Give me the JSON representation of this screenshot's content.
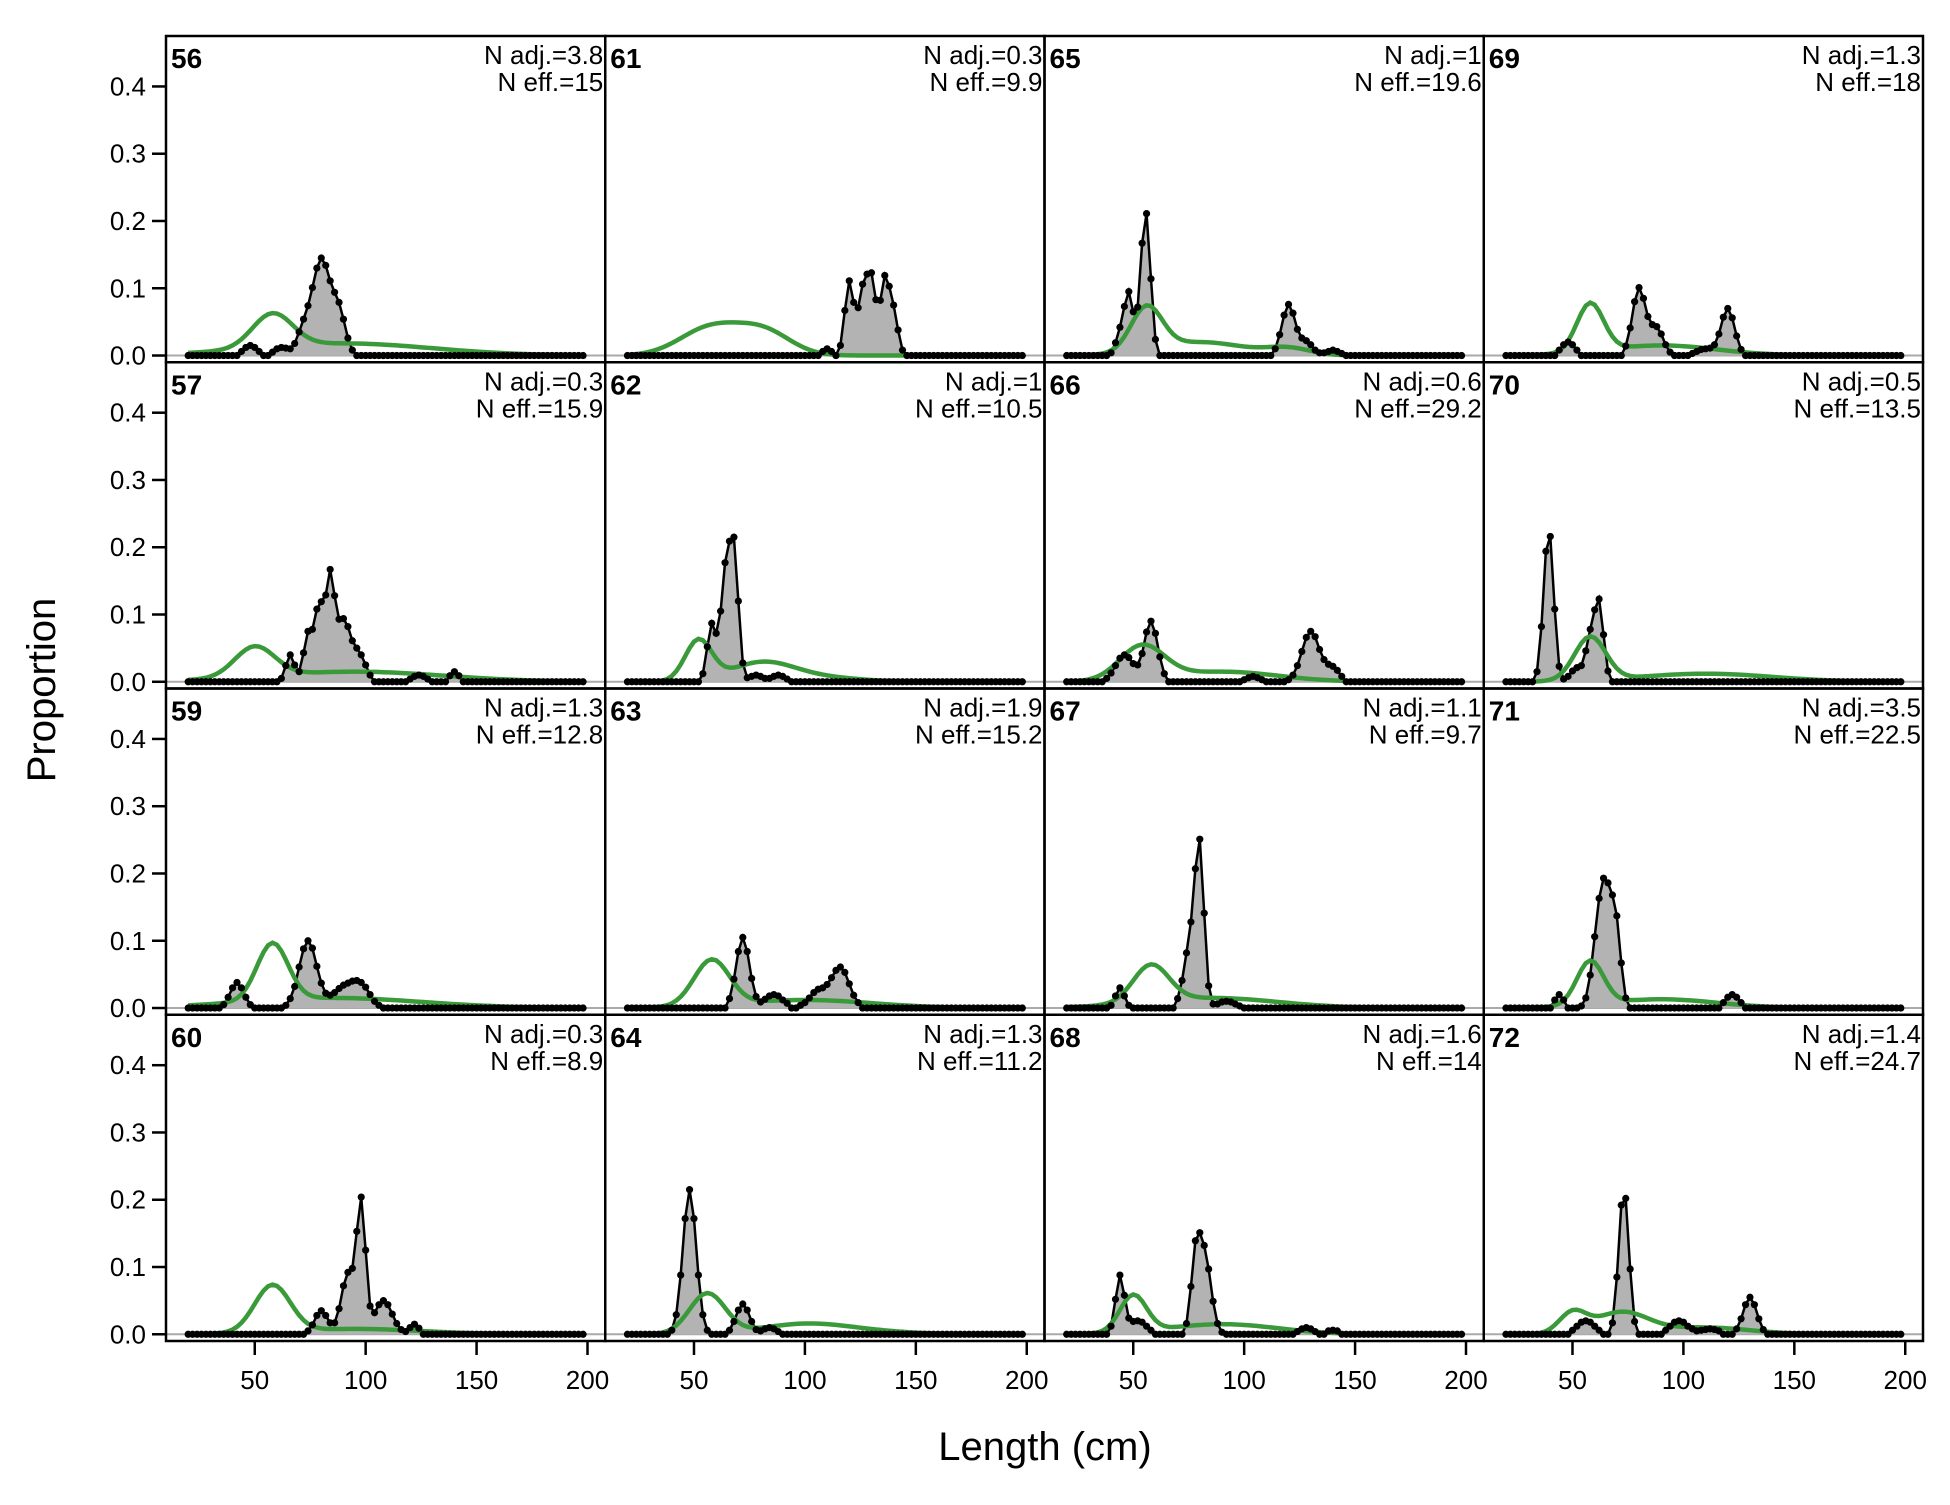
{
  "figure": {
    "xlabel": "Length (cm)",
    "ylabel": "Proportion"
  },
  "chart_data": {
    "type": "line",
    "description_free": true,
    "xlim": [
      10,
      208
    ],
    "ylim": [
      -0.01,
      0.475
    ],
    "x_ticks": [
      50,
      100,
      150,
      200
    ],
    "y_ticks": [
      0.0,
      0.1,
      0.2,
      0.3,
      0.4
    ],
    "y_tick_labels": [
      "0.0",
      "0.1",
      "0.2",
      "0.3",
      "0.4"
    ],
    "x_tick_labels": [
      "50",
      "100",
      "150",
      "200"
    ],
    "layout": "4x4 panels, column-major",
    "colors": {
      "observed_line": "#000000",
      "observed_fill": "#b3b3b3",
      "expected_line": "#3a9a3a",
      "zero_line": "#aaaaaa"
    },
    "bins": {
      "start": 20,
      "end": 198,
      "step": 2
    },
    "panels": [
      {
        "id": "56",
        "n_adj": "N adj.=3.8",
        "n_eff": "N eff.=15",
        "obs_peaks": [
          [
            48,
            0.015,
            3
          ],
          [
            62,
            0.012,
            3
          ],
          [
            72,
            0.035,
            3
          ],
          [
            80,
            0.142,
            4
          ],
          [
            88,
            0.06,
            3
          ]
        ],
        "exp_peaks": [
          [
            58,
            0.05,
            9
          ],
          [
            90,
            0.018,
            40
          ]
        ]
      },
      {
        "id": "57",
        "n_adj": "N adj.=0.3",
        "n_eff": "N eff.=15.9",
        "obs_peaks": [
          [
            66,
            0.04,
            2
          ],
          [
            74,
            0.07,
            2
          ],
          [
            79,
            0.11,
            2
          ],
          [
            84,
            0.15,
            2
          ],
          [
            90,
            0.09,
            3
          ],
          [
            97,
            0.04,
            3
          ],
          [
            124,
            0.01,
            3
          ],
          [
            140,
            0.015,
            2
          ]
        ],
        "exp_peaks": [
          [
            50,
            0.045,
            9
          ],
          [
            95,
            0.015,
            40
          ]
        ]
      },
      {
        "id": "59",
        "n_adj": "N adj.=1.3",
        "n_eff": "N eff.=12.8",
        "obs_peaks": [
          [
            42,
            0.038,
            3
          ],
          [
            74,
            0.1,
            4
          ],
          [
            90,
            0.03,
            5
          ],
          [
            98,
            0.03,
            4
          ]
        ],
        "exp_peaks": [
          [
            58,
            0.085,
            7
          ],
          [
            85,
            0.015,
            40
          ]
        ]
      },
      {
        "id": "60",
        "n_adj": "N adj.=0.3",
        "n_eff": "N eff.=8.9",
        "obs_peaks": [
          [
            80,
            0.035,
            3
          ],
          [
            92,
            0.09,
            3
          ],
          [
            98,
            0.19,
            2
          ],
          [
            108,
            0.05,
            4
          ],
          [
            122,
            0.015,
            2
          ]
        ],
        "exp_peaks": [
          [
            58,
            0.07,
            8
          ],
          [
            95,
            0.008,
            30
          ]
        ]
      },
      {
        "id": "61",
        "n_adj": "N adj.=0.3",
        "n_eff": "N eff.=9.9",
        "obs_peaks": [
          [
            120,
            0.11,
            2
          ],
          [
            126,
            0.09,
            2
          ],
          [
            130,
            0.11,
            2
          ],
          [
            136,
            0.11,
            2
          ],
          [
            140,
            0.06,
            2
          ],
          [
            110,
            0.01,
            2
          ]
        ],
        "exp_peaks": [
          [
            58,
            0.042,
            14
          ],
          [
            82,
            0.033,
            12
          ]
        ]
      },
      {
        "id": "62",
        "n_adj": "N adj.=1",
        "n_eff": "N eff.=10.5",
        "obs_peaks": [
          [
            58,
            0.085,
            2
          ],
          [
            64,
            0.15,
            2
          ],
          [
            68,
            0.195,
            2
          ],
          [
            78,
            0.01,
            3
          ],
          [
            88,
            0.01,
            3
          ]
        ],
        "exp_peaks": [
          [
            52,
            0.06,
            6
          ],
          [
            80,
            0.025,
            14
          ],
          [
            100,
            0.008,
            20
          ]
        ]
      },
      {
        "id": "63",
        "n_adj": "N adj.=1.9",
        "n_eff": "N eff.=15.2",
        "obs_peaks": [
          [
            72,
            0.105,
            3
          ],
          [
            86,
            0.02,
            4
          ],
          [
            116,
            0.06,
            4
          ],
          [
            106,
            0.025,
            4
          ]
        ],
        "exp_peaks": [
          [
            58,
            0.068,
            8
          ],
          [
            100,
            0.012,
            30
          ]
        ]
      },
      {
        "id": "64",
        "n_adj": "N adj.=1.3",
        "n_eff": "N eff.=11.2",
        "obs_peaks": [
          [
            48,
            0.215,
            3
          ],
          [
            72,
            0.045,
            3
          ],
          [
            84,
            0.01,
            3
          ]
        ],
        "exp_peaks": [
          [
            56,
            0.06,
            8
          ],
          [
            100,
            0.015,
            20
          ],
          [
            130,
            0.003,
            20
          ]
        ]
      },
      {
        "id": "65",
        "n_adj": "N adj.=1",
        "n_eff": "N eff.=19.6",
        "obs_peaks": [
          [
            44,
            0.03,
            2
          ],
          [
            48,
            0.09,
            2
          ],
          [
            54,
            0.06,
            2
          ],
          [
            56,
            0.175,
            2
          ],
          [
            120,
            0.075,
            3
          ],
          [
            128,
            0.02,
            3
          ],
          [
            140,
            0.008,
            3
          ]
        ],
        "exp_peaks": [
          [
            56,
            0.065,
            7
          ],
          [
            80,
            0.02,
            20
          ],
          [
            120,
            0.01,
            10
          ]
        ]
      },
      {
        "id": "66",
        "n_adj": "N adj.=0.6",
        "n_eff": "N eff.=29.2",
        "obs_peaks": [
          [
            46,
            0.04,
            4
          ],
          [
            58,
            0.09,
            3
          ],
          [
            130,
            0.075,
            4
          ],
          [
            140,
            0.02,
            3
          ],
          [
            104,
            0.008,
            3
          ]
        ],
        "exp_peaks": [
          [
            54,
            0.05,
            10
          ],
          [
            90,
            0.015,
            25
          ]
        ]
      },
      {
        "id": "67",
        "n_adj": "N adj.=1.1",
        "n_eff": "N eff.=9.7",
        "obs_peaks": [
          [
            44,
            0.03,
            2
          ],
          [
            76,
            0.1,
            3
          ],
          [
            80,
            0.21,
            2
          ],
          [
            92,
            0.01,
            4
          ]
        ],
        "exp_peaks": [
          [
            58,
            0.055,
            8
          ],
          [
            85,
            0.015,
            30
          ]
        ]
      },
      {
        "id": "68",
        "n_adj": "N adj.=1.6",
        "n_eff": "N eff.=14",
        "obs_peaks": [
          [
            44,
            0.085,
            2
          ],
          [
            52,
            0.02,
            4
          ],
          [
            78,
            0.09,
            2
          ],
          [
            82,
            0.12,
            3
          ],
          [
            128,
            0.01,
            3
          ],
          [
            140,
            0.006,
            3
          ]
        ],
        "exp_peaks": [
          [
            50,
            0.055,
            6
          ],
          [
            90,
            0.015,
            25
          ]
        ]
      },
      {
        "id": "69",
        "n_adj": "N adj.=1.3",
        "n_eff": "N eff.=18",
        "obs_peaks": [
          [
            48,
            0.02,
            3
          ],
          [
            80,
            0.1,
            3
          ],
          [
            88,
            0.04,
            3
          ],
          [
            120,
            0.07,
            3
          ],
          [
            110,
            0.01,
            4
          ]
        ],
        "exp_peaks": [
          [
            58,
            0.072,
            6
          ],
          [
            90,
            0.015,
            25
          ]
        ]
      },
      {
        "id": "70",
        "n_adj": "N adj.=0.5",
        "n_eff": "N eff.=13.5",
        "obs_peaks": [
          [
            38,
            0.1,
            2
          ],
          [
            40,
            0.155,
            2
          ],
          [
            52,
            0.02,
            3
          ],
          [
            58,
            0.06,
            2
          ],
          [
            62,
            0.115,
            2
          ]
        ],
        "exp_peaks": [
          [
            58,
            0.065,
            7
          ],
          [
            110,
            0.012,
            30
          ]
        ]
      },
      {
        "id": "71",
        "n_adj": "N adj.=3.5",
        "n_eff": "N eff.=22.5",
        "obs_peaks": [
          [
            44,
            0.02,
            2
          ],
          [
            62,
            0.11,
            3
          ],
          [
            66,
            0.13,
            3
          ],
          [
            70,
            0.08,
            2
          ],
          [
            122,
            0.02,
            3
          ]
        ],
        "exp_peaks": [
          [
            58,
            0.065,
            6
          ],
          [
            90,
            0.013,
            25
          ]
        ]
      },
      {
        "id": "72",
        "n_adj": "N adj.=1.4",
        "n_eff": "N eff.=24.7",
        "obs_peaks": [
          [
            56,
            0.02,
            4
          ],
          [
            72,
            0.11,
            2
          ],
          [
            74,
            0.135,
            2
          ],
          [
            98,
            0.02,
            4
          ],
          [
            130,
            0.055,
            3
          ],
          [
            112,
            0.008,
            4
          ]
        ],
        "exp_peaks": [
          [
            50,
            0.03,
            6
          ],
          [
            72,
            0.032,
            12
          ],
          [
            110,
            0.01,
            20
          ]
        ]
      }
    ]
  }
}
